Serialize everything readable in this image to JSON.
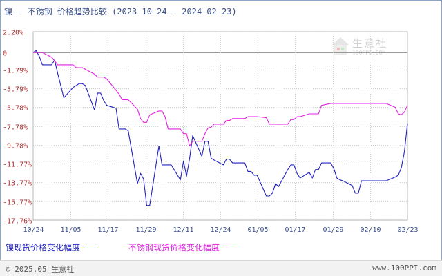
{
  "header": {
    "title": "镍 - 不锈钢 价格趋势比较",
    "date_range": "(2023-10-24 - 2024-02-23)"
  },
  "watermark": {
    "text": "生意社",
    "url": "100PPI.COM"
  },
  "legend": {
    "nickel_label": "镍现货价格变化幅度",
    "stainless_label": "不锈钢现货价格变化幅度"
  },
  "footer": {
    "copyright": "© 2025.05 生意社",
    "website": "www.100PPI.com"
  },
  "colors": {
    "nickel": "#2020c0",
    "stainless": "#e020e0",
    "title": "#3a4f8a",
    "axis_text": "#b03030"
  },
  "chart_data": {
    "type": "line",
    "ylim": [
      -17.76,
      2.2
    ],
    "yticks": [
      "2.20%",
      "0",
      "-1.79%",
      "-3.79%",
      "-5.78%",
      "-7.78%",
      "-9.78%",
      "-11.77%",
      "-13.77%",
      "-15.77%",
      "-17.76%"
    ],
    "ytick_values": [
      2.2,
      0,
      -1.79,
      -3.79,
      -5.78,
      -7.78,
      -9.78,
      -11.77,
      -13.77,
      -15.77,
      -17.76
    ],
    "xticks": [
      "10/24",
      "11/05",
      "11/17",
      "11/29",
      "12/11",
      "12/24",
      "01/05",
      "01/17",
      "01/29",
      "02/10",
      "02/23"
    ],
    "x_start": "2023-10-24",
    "x_end": "2024-02-23",
    "grid": true,
    "series": [
      {
        "name": "镍现货价格变化幅度",
        "points": [
          [
            "2023-10-24",
            0
          ],
          [
            "2023-10-25",
            0.2
          ],
          [
            "2023-10-26",
            -0.4
          ],
          [
            "2023-10-27",
            -1.3
          ],
          [
            "2023-10-30",
            -1.3
          ],
          [
            "2023-10-31",
            -0.8
          ],
          [
            "2023-11-01",
            -2.2
          ],
          [
            "2023-11-02",
            -3.5
          ],
          [
            "2023-11-03",
            -4.8
          ],
          [
            "2023-11-06",
            -3.7
          ],
          [
            "2023-11-07",
            -3.5
          ],
          [
            "2023-11-08",
            -3.3
          ],
          [
            "2023-11-09",
            -3.3
          ],
          [
            "2023-11-10",
            -3.5
          ],
          [
            "2023-11-13",
            -6.1
          ],
          [
            "2023-11-14",
            -4.3
          ],
          [
            "2023-11-15",
            -4.3
          ],
          [
            "2023-11-16",
            -5.1
          ],
          [
            "2023-11-17",
            -5.6
          ],
          [
            "2023-11-20",
            -5.9
          ],
          [
            "2023-11-21",
            -8.1
          ],
          [
            "2023-11-22",
            -8.1
          ],
          [
            "2023-11-23",
            -8.1
          ],
          [
            "2023-11-24",
            -8.3
          ],
          [
            "2023-11-27",
            -13.9
          ],
          [
            "2023-11-28",
            -12.8
          ],
          [
            "2023-11-29",
            -13.4
          ],
          [
            "2023-11-30",
            -16.2
          ],
          [
            "2023-12-01",
            -16.2
          ],
          [
            "2023-12-04",
            -9.9
          ],
          [
            "2023-12-05",
            -11.9
          ],
          [
            "2023-12-06",
            -11.9
          ],
          [
            "2023-12-07",
            -11.9
          ],
          [
            "2023-12-08",
            -11.9
          ],
          [
            "2023-12-11",
            -13.5
          ],
          [
            "2023-12-12",
            -11.5
          ],
          [
            "2023-12-13",
            -13.1
          ],
          [
            "2023-12-14",
            -11.2
          ],
          [
            "2023-12-15",
            -8.8
          ],
          [
            "2023-12-18",
            -11.0
          ],
          [
            "2023-12-19",
            -9.4
          ],
          [
            "2023-12-20",
            -9.4
          ],
          [
            "2023-12-21",
            -11.2
          ],
          [
            "2023-12-22",
            -11.4
          ],
          [
            "2023-12-25",
            -11.9
          ],
          [
            "2023-12-26",
            -11.3
          ],
          [
            "2023-12-27",
            -11.3
          ],
          [
            "2023-12-28",
            -11.7
          ],
          [
            "2024-01-01",
            -11.7
          ],
          [
            "2024-01-02",
            -12.6
          ],
          [
            "2024-01-03",
            -12.6
          ],
          [
            "2024-01-04",
            -13.0
          ],
          [
            "2024-01-05",
            -13.0
          ],
          [
            "2024-01-08",
            -15.2
          ],
          [
            "2024-01-09",
            -15.2
          ],
          [
            "2024-01-10",
            -14.9
          ],
          [
            "2024-01-11",
            -13.9
          ],
          [
            "2024-01-12",
            -14.2
          ],
          [
            "2024-01-15",
            -12.4
          ],
          [
            "2024-01-16",
            -11.9
          ],
          [
            "2024-01-17",
            -11.9
          ],
          [
            "2024-01-18",
            -12.8
          ],
          [
            "2024-01-19",
            -13.3
          ],
          [
            "2024-01-22",
            -12.7
          ],
          [
            "2024-01-23",
            -13.3
          ],
          [
            "2024-01-24",
            -12.4
          ],
          [
            "2024-01-25",
            -12.4
          ],
          [
            "2024-01-26",
            -11.7
          ],
          [
            "2024-01-29",
            -11.7
          ],
          [
            "2024-01-30",
            -12.3
          ],
          [
            "2024-01-31",
            -13.3
          ],
          [
            "2024-02-01",
            -13.5
          ],
          [
            "2024-02-02",
            -13.6
          ],
          [
            "2024-02-05",
            -14.1
          ],
          [
            "2024-02-06",
            -14.9
          ],
          [
            "2024-02-07",
            -14.9
          ],
          [
            "2024-02-08",
            -13.6
          ],
          [
            "2024-02-09",
            -13.6
          ],
          [
            "2024-02-12",
            -13.6
          ],
          [
            "2024-02-13",
            -13.6
          ],
          [
            "2024-02-14",
            -13.6
          ],
          [
            "2024-02-15",
            -13.6
          ],
          [
            "2024-02-16",
            -13.6
          ],
          [
            "2024-02-19",
            -13.2
          ],
          [
            "2024-02-20",
            -13.0
          ],
          [
            "2024-02-21",
            -12.2
          ],
          [
            "2024-02-22",
            -10.5
          ],
          [
            "2024-02-23",
            -7.5
          ]
        ]
      },
      {
        "name": "不锈钢现货价格变化幅度",
        "points": [
          [
            "2023-10-24",
            0
          ],
          [
            "2023-10-27",
            0
          ],
          [
            "2023-10-30",
            -0.5
          ],
          [
            "2023-11-01",
            -1.3
          ],
          [
            "2023-11-06",
            -1.3
          ],
          [
            "2023-11-07",
            -1.6
          ],
          [
            "2023-11-09",
            -1.6
          ],
          [
            "2023-11-13",
            -2.3
          ],
          [
            "2023-11-14",
            -2.6
          ],
          [
            "2023-11-16",
            -2.6
          ],
          [
            "2023-11-17",
            -2.8
          ],
          [
            "2023-11-20",
            -4.0
          ],
          [
            "2023-11-21",
            -4.4
          ],
          [
            "2023-11-22",
            -5.0
          ],
          [
            "2023-11-24",
            -5.0
          ],
          [
            "2023-11-27",
            -6.0
          ],
          [
            "2023-11-28",
            -7.0
          ],
          [
            "2023-11-29",
            -7.4
          ],
          [
            "2023-11-30",
            -7.4
          ],
          [
            "2023-12-01",
            -6.6
          ],
          [
            "2023-12-04",
            -6.2
          ],
          [
            "2023-12-05",
            -6.2
          ],
          [
            "2023-12-06",
            -6.8
          ],
          [
            "2023-12-07",
            -8.1
          ],
          [
            "2023-12-08",
            -8.1
          ],
          [
            "2023-12-11",
            -8.1
          ],
          [
            "2023-12-12",
            -8.6
          ],
          [
            "2023-12-13",
            -8.6
          ],
          [
            "2023-12-14",
            -9.9
          ],
          [
            "2023-12-15",
            -9.4
          ],
          [
            "2023-12-18",
            -9.4
          ],
          [
            "2023-12-19",
            -8.6
          ],
          [
            "2023-12-20",
            -8.0
          ],
          [
            "2023-12-21",
            -7.9
          ],
          [
            "2023-12-22",
            -7.6
          ],
          [
            "2023-12-25",
            -7.6
          ],
          [
            "2023-12-26",
            -7.2
          ],
          [
            "2023-12-27",
            -7.2
          ],
          [
            "2023-12-28",
            -7.0
          ],
          [
            "2024-01-01",
            -7.0
          ],
          [
            "2024-01-02",
            -6.8
          ],
          [
            "2024-01-04",
            -6.8
          ],
          [
            "2024-01-05",
            -6.8
          ],
          [
            "2024-01-08",
            -6.9
          ],
          [
            "2024-01-09",
            -7.6
          ],
          [
            "2024-01-10",
            -7.6
          ],
          [
            "2024-01-15",
            -7.6
          ],
          [
            "2024-01-16",
            -7.1
          ],
          [
            "2024-01-17",
            -7.1
          ],
          [
            "2024-01-18",
            -6.8
          ],
          [
            "2024-01-19",
            -6.8
          ],
          [
            "2024-01-22",
            -6.5
          ],
          [
            "2024-01-23",
            -6.5
          ],
          [
            "2024-01-24",
            -6.5
          ],
          [
            "2024-01-25",
            -6.5
          ],
          [
            "2024-01-26",
            -5.6
          ],
          [
            "2024-01-29",
            -5.4
          ],
          [
            "2024-01-30",
            -5.4
          ],
          [
            "2024-02-05",
            -5.4
          ],
          [
            "2024-02-09",
            -5.4
          ],
          [
            "2024-02-16",
            -5.4
          ],
          [
            "2024-02-19",
            -5.8
          ],
          [
            "2024-02-20",
            -6.5
          ],
          [
            "2024-02-21",
            -6.6
          ],
          [
            "2024-02-22",
            -6.3
          ],
          [
            "2024-02-23",
            -5.6
          ]
        ]
      }
    ]
  }
}
